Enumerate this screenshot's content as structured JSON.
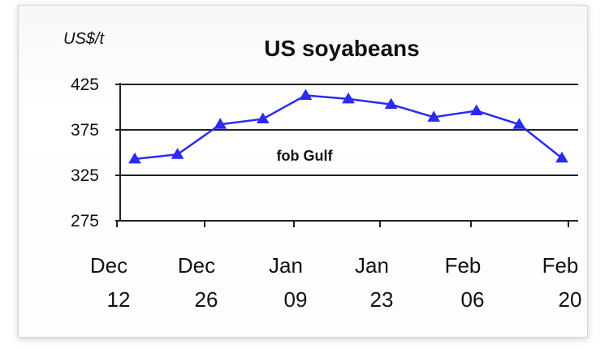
{
  "chart_data": {
    "type": "line",
    "title": "US soyabeans",
    "unit_label": "US$/t",
    "annotation": "fob Gulf",
    "ylim": [
      275,
      425
    ],
    "yticks": [
      "425",
      "375",
      "325",
      "275"
    ],
    "ytick_values": [
      425,
      375,
      325,
      275
    ],
    "grid": true,
    "xticks": [
      {
        "month": "Dec",
        "day": "12"
      },
      {
        "month": "Dec",
        "day": "26"
      },
      {
        "month": "Jan",
        "day": "09"
      },
      {
        "month": "Jan",
        "day": "23"
      },
      {
        "month": "Feb",
        "day": "06"
      },
      {
        "month": "Feb",
        "day": "20"
      }
    ],
    "series": [
      {
        "color": "#2b2bf0",
        "marker": "triangle",
        "values": [
          343,
          348,
          381,
          387,
          413,
          409,
          403,
          389,
          396,
          381,
          344
        ]
      }
    ]
  }
}
